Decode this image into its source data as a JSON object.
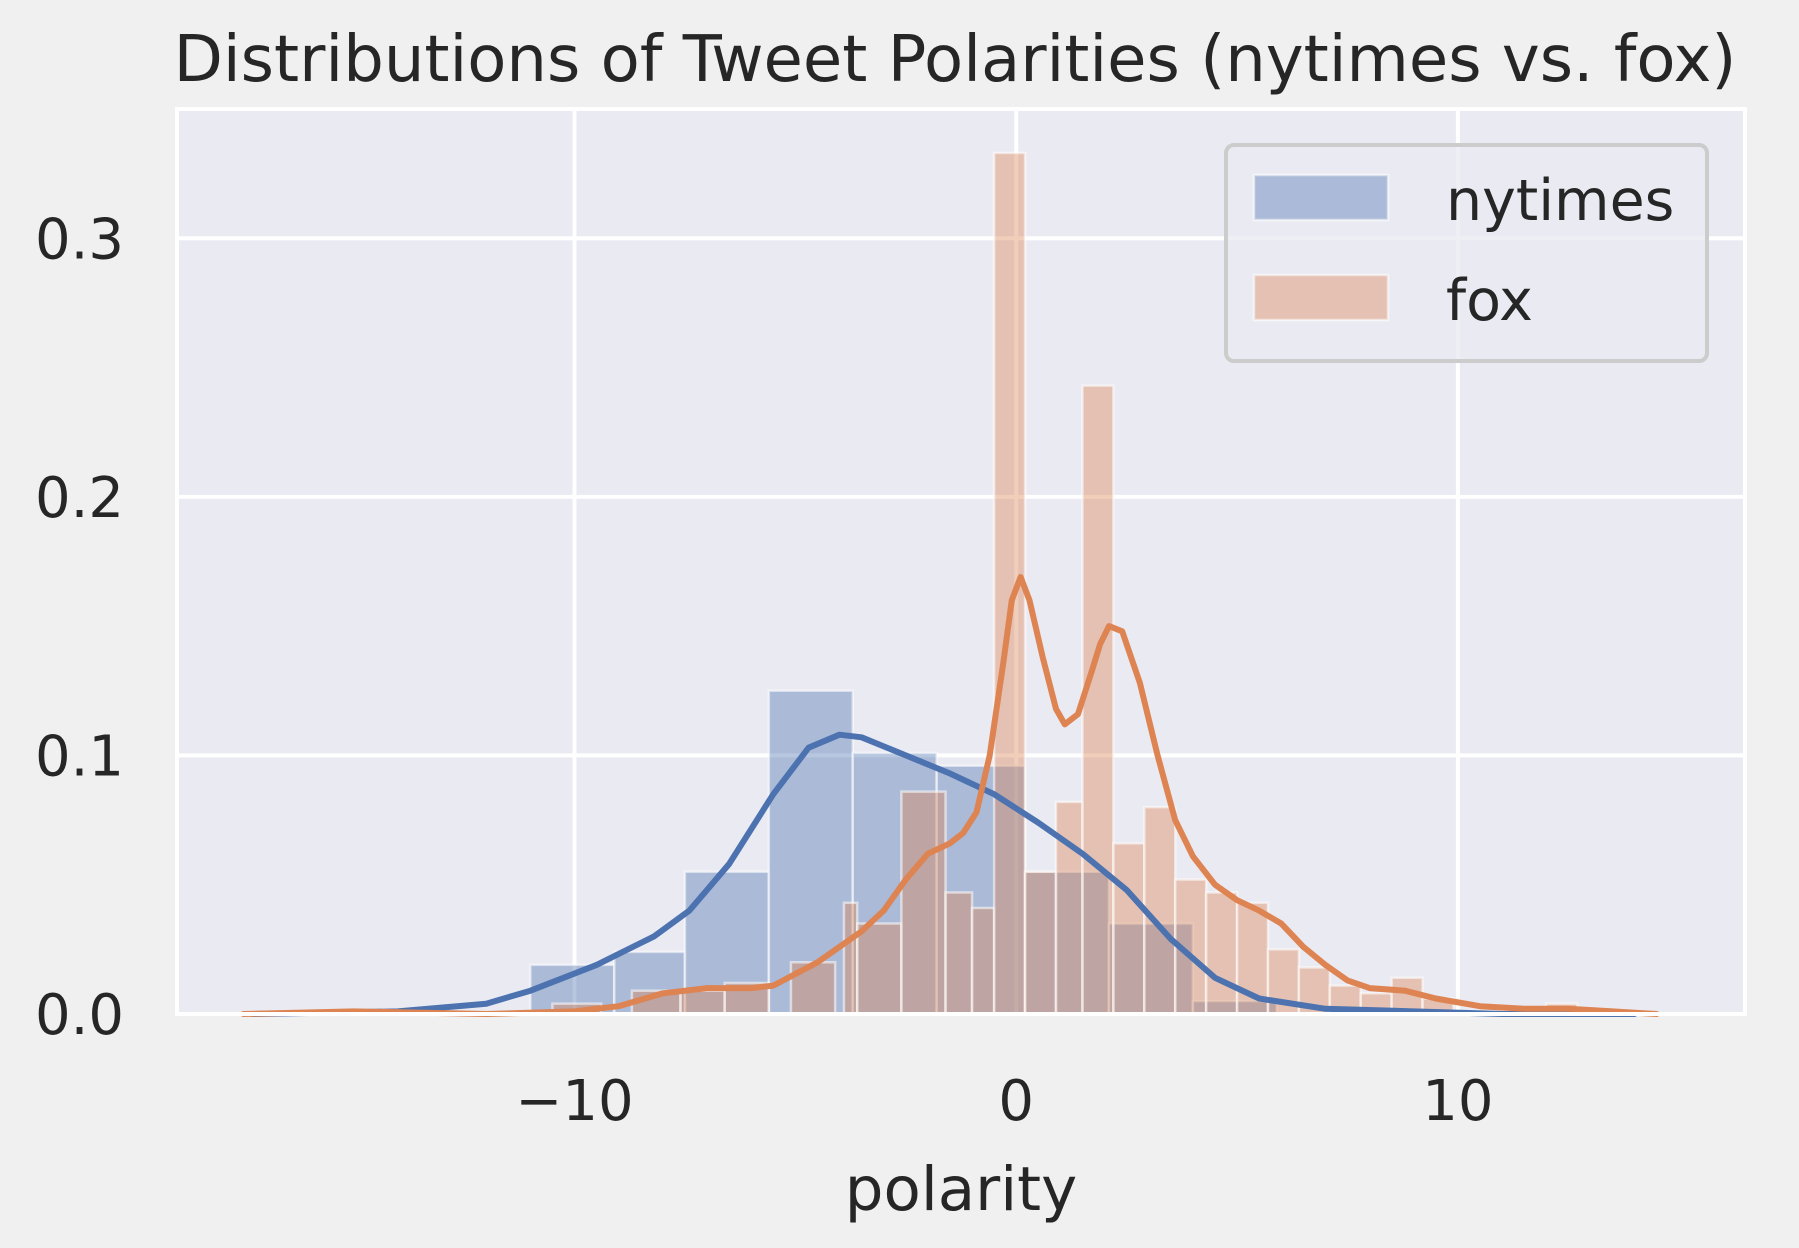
{
  "chart_data": {
    "type": "bar",
    "title": "Distributions of Tweet Polarities (nytimes vs. fox)",
    "xlabel": "polarity",
    "ylabel": "",
    "xlim": [
      -19,
      16.5
    ],
    "ylim": [
      0,
      0.35
    ],
    "xticks": [
      {
        "value": -10,
        "label": "−10"
      },
      {
        "value": 0,
        "label": "0"
      },
      {
        "value": 10,
        "label": "10"
      }
    ],
    "yticks": [
      {
        "value": 0.0,
        "label": "0.0"
      },
      {
        "value": 0.1,
        "label": "0.1"
      },
      {
        "value": 0.2,
        "label": "0.2"
      },
      {
        "value": 0.3,
        "label": "0.3"
      }
    ],
    "grid": true,
    "legend_position": "top-right",
    "series": [
      {
        "name": "nytimes",
        "color": "#4c72b0",
        "histogram": [
          {
            "x0": -11.0,
            "x1": -9.1,
            "height": 0.019
          },
          {
            "x0": -9.1,
            "x1": -7.5,
            "height": 0.024
          },
          {
            "x0": -7.5,
            "x1": -5.6,
            "height": 0.055
          },
          {
            "x0": -5.6,
            "x1": -3.7,
            "height": 0.125
          },
          {
            "x0": -3.7,
            "x1": -1.8,
            "height": 0.101
          },
          {
            "x0": -1.8,
            "x1": 0.2,
            "height": 0.096
          },
          {
            "x0": 0.2,
            "x1": 2.1,
            "height": 0.055
          },
          {
            "x0": 2.1,
            "x1": 4.0,
            "height": 0.035
          },
          {
            "x0": 4.0,
            "x1": 5.9,
            "height": 0.005
          }
        ],
        "kde": [
          [
            -17.3,
            0.0
          ],
          [
            -14.0,
            0.001
          ],
          [
            -12.0,
            0.004
          ],
          [
            -11.0,
            0.009
          ],
          [
            -9.5,
            0.019
          ],
          [
            -8.2,
            0.03
          ],
          [
            -7.4,
            0.04
          ],
          [
            -6.5,
            0.058
          ],
          [
            -5.5,
            0.085
          ],
          [
            -4.7,
            0.103
          ],
          [
            -4.0,
            0.108
          ],
          [
            -3.5,
            0.107
          ],
          [
            -2.5,
            0.1
          ],
          [
            -1.5,
            0.093
          ],
          [
            -0.5,
            0.085
          ],
          [
            0.5,
            0.074
          ],
          [
            1.5,
            0.062
          ],
          [
            2.5,
            0.048
          ],
          [
            3.5,
            0.029
          ],
          [
            4.5,
            0.014
          ],
          [
            5.5,
            0.006
          ],
          [
            7.0,
            0.002
          ],
          [
            9.0,
            0.001
          ],
          [
            11.0,
            0.0
          ],
          [
            14.0,
            0.0
          ]
        ]
      },
      {
        "name": "fox",
        "color": "#dd8452",
        "histogram": [
          {
            "x0": -10.5,
            "x1": -9.4,
            "height": 0.004
          },
          {
            "x0": -8.7,
            "x1": -7.6,
            "height": 0.009
          },
          {
            "x0": -7.6,
            "x1": -6.6,
            "height": 0.009
          },
          {
            "x0": -6.6,
            "x1": -5.6,
            "height": 0.012
          },
          {
            "x0": -5.1,
            "x1": -4.1,
            "height": 0.02
          },
          {
            "x0": -3.9,
            "x1": -3.6,
            "height": 0.043
          },
          {
            "x0": -3.6,
            "x1": -2.6,
            "height": 0.035
          },
          {
            "x0": -2.6,
            "x1": -1.6,
            "height": 0.086
          },
          {
            "x0": -1.6,
            "x1": -1.0,
            "height": 0.047
          },
          {
            "x0": -1.0,
            "x1": -0.5,
            "height": 0.041
          },
          {
            "x0": -0.5,
            "x1": 0.2,
            "height": 0.333
          },
          {
            "x0": 0.2,
            "x1": 0.9,
            "height": 0.055
          },
          {
            "x0": 0.9,
            "x1": 1.5,
            "height": 0.082
          },
          {
            "x0": 1.5,
            "x1": 2.2,
            "height": 0.243
          },
          {
            "x0": 2.2,
            "x1": 2.9,
            "height": 0.066
          },
          {
            "x0": 2.9,
            "x1": 3.6,
            "height": 0.08
          },
          {
            "x0": 3.6,
            "x1": 4.3,
            "height": 0.052
          },
          {
            "x0": 4.3,
            "x1": 5.0,
            "height": 0.047
          },
          {
            "x0": 5.0,
            "x1": 5.7,
            "height": 0.043
          },
          {
            "x0": 5.7,
            "x1": 6.4,
            "height": 0.025
          },
          {
            "x0": 6.4,
            "x1": 7.1,
            "height": 0.018
          },
          {
            "x0": 7.1,
            "x1": 7.8,
            "height": 0.011
          },
          {
            "x0": 7.8,
            "x1": 8.5,
            "height": 0.008
          },
          {
            "x0": 8.5,
            "x1": 9.2,
            "height": 0.014
          },
          {
            "x0": 9.2,
            "x1": 9.9,
            "height": 0.006
          },
          {
            "x0": 12.0,
            "x1": 12.7,
            "height": 0.004
          }
        ],
        "kde": [
          [
            -17.5,
            0.0
          ],
          [
            -15.0,
            0.001
          ],
          [
            -12.0,
            0.0
          ],
          [
            -10.0,
            0.001
          ],
          [
            -9.0,
            0.003
          ],
          [
            -8.0,
            0.008
          ],
          [
            -7.0,
            0.01
          ],
          [
            -6.0,
            0.01
          ],
          [
            -5.5,
            0.011
          ],
          [
            -4.5,
            0.02
          ],
          [
            -3.5,
            0.032
          ],
          [
            -3.0,
            0.04
          ],
          [
            -2.5,
            0.052
          ],
          [
            -2.0,
            0.062
          ],
          [
            -1.5,
            0.066
          ],
          [
            -1.2,
            0.07
          ],
          [
            -0.9,
            0.078
          ],
          [
            -0.6,
            0.1
          ],
          [
            -0.3,
            0.135
          ],
          [
            -0.1,
            0.16
          ],
          [
            0.1,
            0.169
          ],
          [
            0.3,
            0.16
          ],
          [
            0.6,
            0.138
          ],
          [
            0.9,
            0.118
          ],
          [
            1.1,
            0.112
          ],
          [
            1.4,
            0.116
          ],
          [
            1.7,
            0.132
          ],
          [
            1.9,
            0.143
          ],
          [
            2.1,
            0.15
          ],
          [
            2.4,
            0.148
          ],
          [
            2.8,
            0.128
          ],
          [
            3.2,
            0.1
          ],
          [
            3.6,
            0.075
          ],
          [
            4.0,
            0.061
          ],
          [
            4.5,
            0.05
          ],
          [
            5.0,
            0.044
          ],
          [
            5.5,
            0.04
          ],
          [
            6.0,
            0.035
          ],
          [
            6.5,
            0.026
          ],
          [
            7.0,
            0.019
          ],
          [
            7.5,
            0.013
          ],
          [
            8.0,
            0.01
          ],
          [
            8.8,
            0.009
          ],
          [
            9.5,
            0.006
          ],
          [
            10.5,
            0.003
          ],
          [
            11.5,
            0.002
          ],
          [
            12.5,
            0.002
          ],
          [
            13.5,
            0.001
          ],
          [
            14.5,
            0.0
          ]
        ]
      }
    ]
  }
}
